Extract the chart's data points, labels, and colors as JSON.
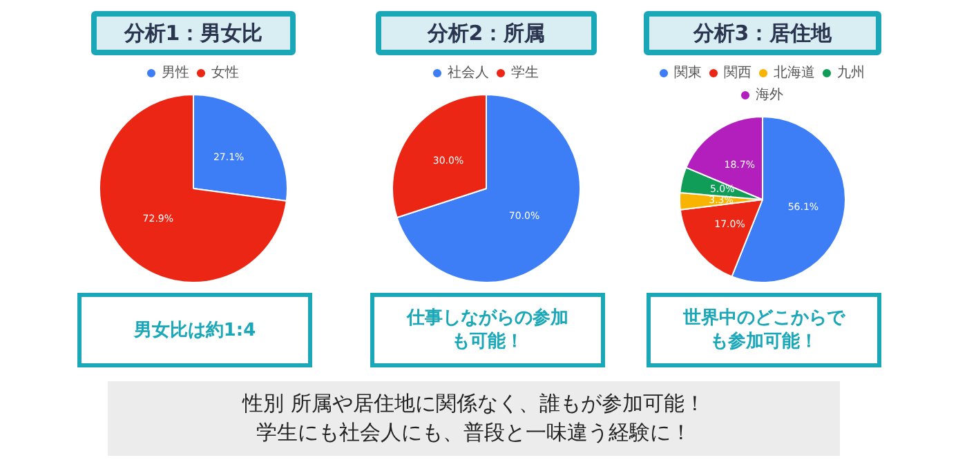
{
  "chart_data": [
    {
      "type": "pie",
      "title": "分析1：男女比",
      "categories": [
        "男性",
        "女性"
      ],
      "values": [
        27.1,
        72.9
      ],
      "colors": [
        "#3d7ef7",
        "#ec2615"
      ],
      "value_labels": [
        "27.1%",
        "72.9%"
      ],
      "legend": "top",
      "annotations": [
        "男女比は約1:4"
      ]
    },
    {
      "type": "pie",
      "title": "分析2：所属",
      "categories": [
        "社会人",
        "学生"
      ],
      "values": [
        70.0,
        30.0
      ],
      "colors": [
        "#3d7ef7",
        "#ec2615"
      ],
      "value_labels": [
        "70.0%",
        "30.0%"
      ],
      "legend": "top",
      "annotations": [
        "仕事しながらの参加も可能！"
      ]
    },
    {
      "type": "pie",
      "title": "分析3：居住地",
      "categories": [
        "関東",
        "関西",
        "北海道",
        "九州",
        "海外"
      ],
      "values": [
        56.1,
        17.0,
        3.3,
        5.0,
        18.7
      ],
      "colors": [
        "#3d7ef7",
        "#ec2615",
        "#f8b400",
        "#0f9d58",
        "#b21fbd"
      ],
      "value_labels": [
        "56.1%",
        "17.0%",
        "3.3%",
        "5.0%",
        "18.7%"
      ],
      "legend": "top",
      "annotations": [
        "世界中のどこからでも参加可能！"
      ]
    },
    {
      "type": "other",
      "annotations": [
        "性別 所属や居住地に関係なく、誰もが参加可能！",
        "学生にも社会人にも、普段と一味違う経験に！"
      ]
    }
  ]
}
